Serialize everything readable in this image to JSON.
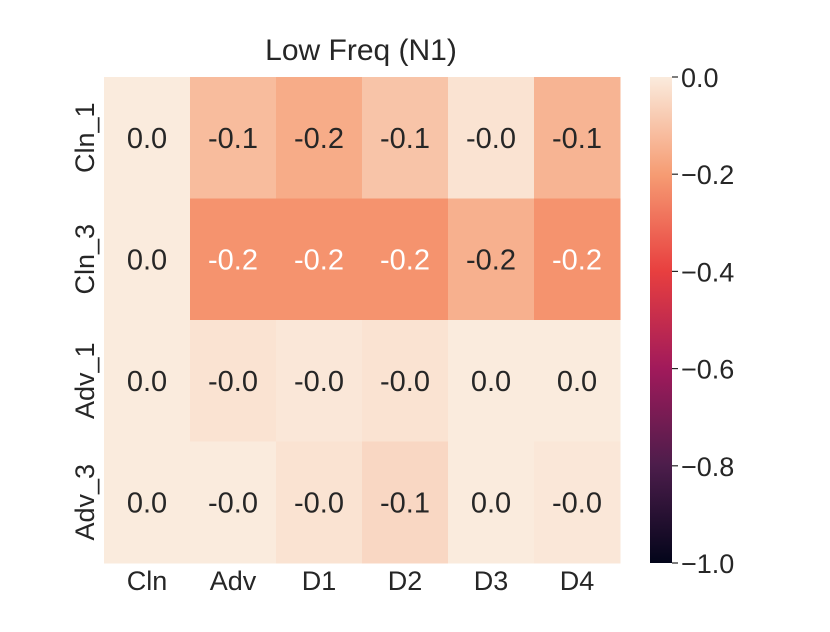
{
  "chart_data": {
    "type": "heatmap",
    "title": "Low Freq (N1)",
    "xlabel": "",
    "ylabel": "",
    "x_categories": [
      "Cln",
      "Adv",
      "D1",
      "D2",
      "D3",
      "D4"
    ],
    "y_categories": [
      "Cln_1",
      "Cln_3",
      "Adv_1",
      "Adv_3"
    ],
    "values": [
      [
        0.0,
        -0.12,
        -0.16,
        -0.1,
        -0.02,
        -0.14
      ],
      [
        0.0,
        -0.22,
        -0.22,
        -0.22,
        -0.15,
        -0.22
      ],
      [
        0.0,
        -0.02,
        -0.01,
        -0.02,
        0.0,
        0.0
      ],
      [
        0.0,
        -0.0,
        -0.02,
        -0.05,
        0.0,
        -0.01
      ]
    ],
    "annotations": [
      [
        "0.0",
        "-0.1",
        "-0.2",
        "-0.1",
        "-0.0",
        "-0.1"
      ],
      [
        "0.0",
        "-0.2",
        "-0.2",
        "-0.2",
        "-0.2",
        "-0.2"
      ],
      [
        "0.0",
        "-0.0",
        "-0.0",
        "-0.0",
        "0.0",
        "0.0"
      ],
      [
        "0.0",
        "-0.0",
        "-0.0",
        "-0.1",
        "0.0",
        "-0.0"
      ]
    ],
    "vmin": -1.0,
    "vmax": 0.0,
    "colorbar": {
      "ticks": [
        0.0,
        -0.2,
        -0.4,
        -0.6,
        -0.8,
        -1.0
      ],
      "tick_labels": [
        "0.0",
        "−0.2",
        "−0.4",
        "−0.6",
        "−0.8",
        "−1.0"
      ]
    },
    "colormap": "rocket",
    "colormap_stops": [
      "#03051a",
      "#4c1d4b",
      "#a11a5b",
      "#e83f3f",
      "#f69c73",
      "#faebdd"
    ]
  }
}
